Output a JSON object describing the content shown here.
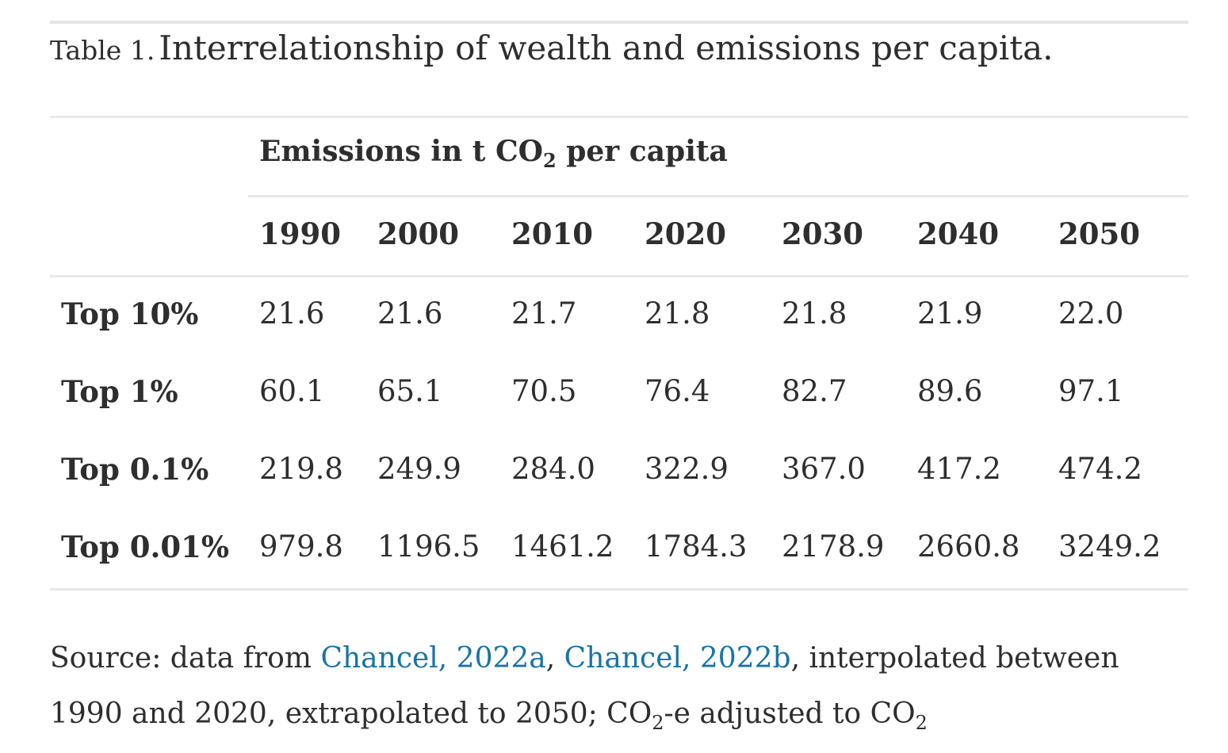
{
  "caption": {
    "label": "Table 1.",
    "title": "Interrelationship of wealth and emissions per capita."
  },
  "table": {
    "group_header_prefix": "Emissions in t CO",
    "group_header_sub": "2",
    "group_header_suffix": " per capita",
    "years": [
      "1990",
      "2000",
      "2010",
      "2020",
      "2030",
      "2040",
      "2050"
    ],
    "rows": [
      {
        "label": "Top 10%",
        "values": [
          "21.6",
          "21.6",
          "21.7",
          "21.8",
          "21.8",
          "21.9",
          "22.0"
        ]
      },
      {
        "label": "Top 1%",
        "values": [
          "60.1",
          "65.1",
          "70.5",
          "76.4",
          "82.7",
          "89.6",
          "97.1"
        ]
      },
      {
        "label": "Top 0.1%",
        "values": [
          "219.8",
          "249.9",
          "284.0",
          "322.9",
          "367.0",
          "417.2",
          "474.2"
        ]
      },
      {
        "label": "Top 0.01%",
        "values": [
          "979.8",
          "1196.5",
          "1461.2",
          "1784.3",
          "2178.9",
          "2660.8",
          "3249.2"
        ]
      }
    ]
  },
  "source": {
    "prefix": "Source: data from ",
    "link1": "Chancel, 2022a",
    "sep": ", ",
    "link2": "Chancel, 2022b",
    "text1": ", interpolated between 1990 and 2020, extrapolated to 2050; CO",
    "sub1": "2",
    "text2": "-e adjusted to CO",
    "sub2": "2"
  },
  "colors": {
    "text": "#2e2e2e",
    "link": "#1a73a8",
    "rule": "#e8e8e8"
  }
}
